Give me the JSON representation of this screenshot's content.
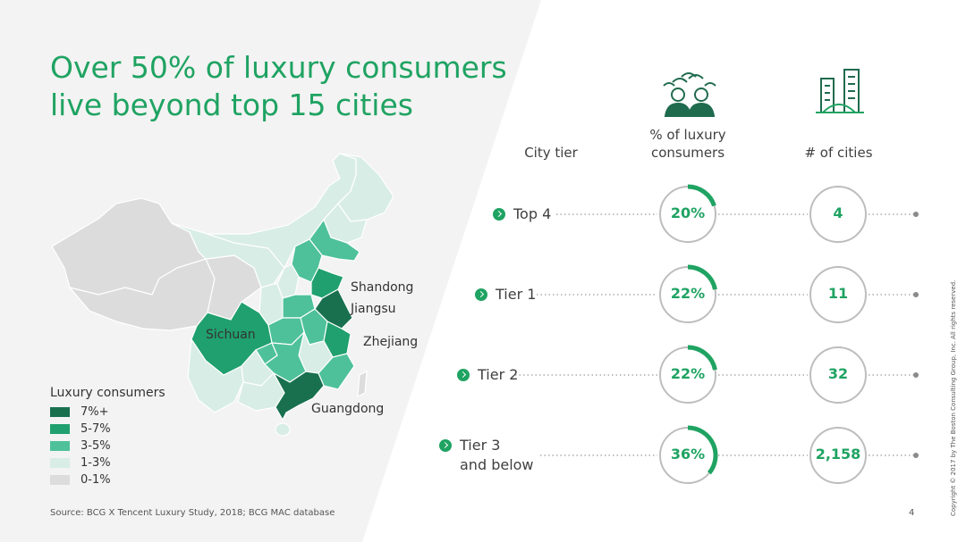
{
  "slide": {
    "title_line1": "Over 50% of luxury consumers",
    "title_line2": "live beyond top 15 cities",
    "source": "Source: BCG X Tencent Luxury Study, 2018; BCG MAC database",
    "page_number": "4",
    "copyright": "Copyright © 2017 by The Boston Consulting Group, Inc. All rights reserved."
  },
  "map": {
    "province_labels": {
      "shandong": "Shandong",
      "jiangsu": "Jiangsu",
      "sichuan": "Sichuan",
      "zhejiang": "Zhejiang",
      "guangdong": "Guangdong"
    },
    "legend": {
      "title": "Luxury consumers",
      "items": [
        {
          "label": "7%+",
          "color": "#19704f"
        },
        {
          "label": "5-7%",
          "color": "#20a06e"
        },
        {
          "label": "3-5%",
          "color": "#4ec19a"
        },
        {
          "label": "1-3%",
          "color": "#d8ede6"
        },
        {
          "label": "0-1%",
          "color": "#dcdcdc"
        }
      ]
    }
  },
  "table": {
    "headers": {
      "city_tier": "City tier",
      "pct_line1": "% of luxury",
      "pct_line2": "consumers",
      "cities": "# of cities"
    },
    "icons": {
      "consumers": "consumers-crowd-icon",
      "cities": "city-buildings-icon"
    },
    "accent_color": "#1fa362",
    "rows": [
      {
        "tier": "Top 4",
        "tier_line2": "",
        "pct": "20%",
        "pct_value": 20,
        "cities": "4"
      },
      {
        "tier": "Tier 1",
        "tier_line2": "",
        "pct": "22%",
        "pct_value": 22,
        "cities": "11"
      },
      {
        "tier": "Tier 2",
        "tier_line2": "",
        "pct": "22%",
        "pct_value": 22,
        "cities": "32"
      },
      {
        "tier": "Tier 3",
        "tier_line2": "and below",
        "pct": "36%",
        "pct_value": 36,
        "cities": "2,158"
      }
    ]
  }
}
